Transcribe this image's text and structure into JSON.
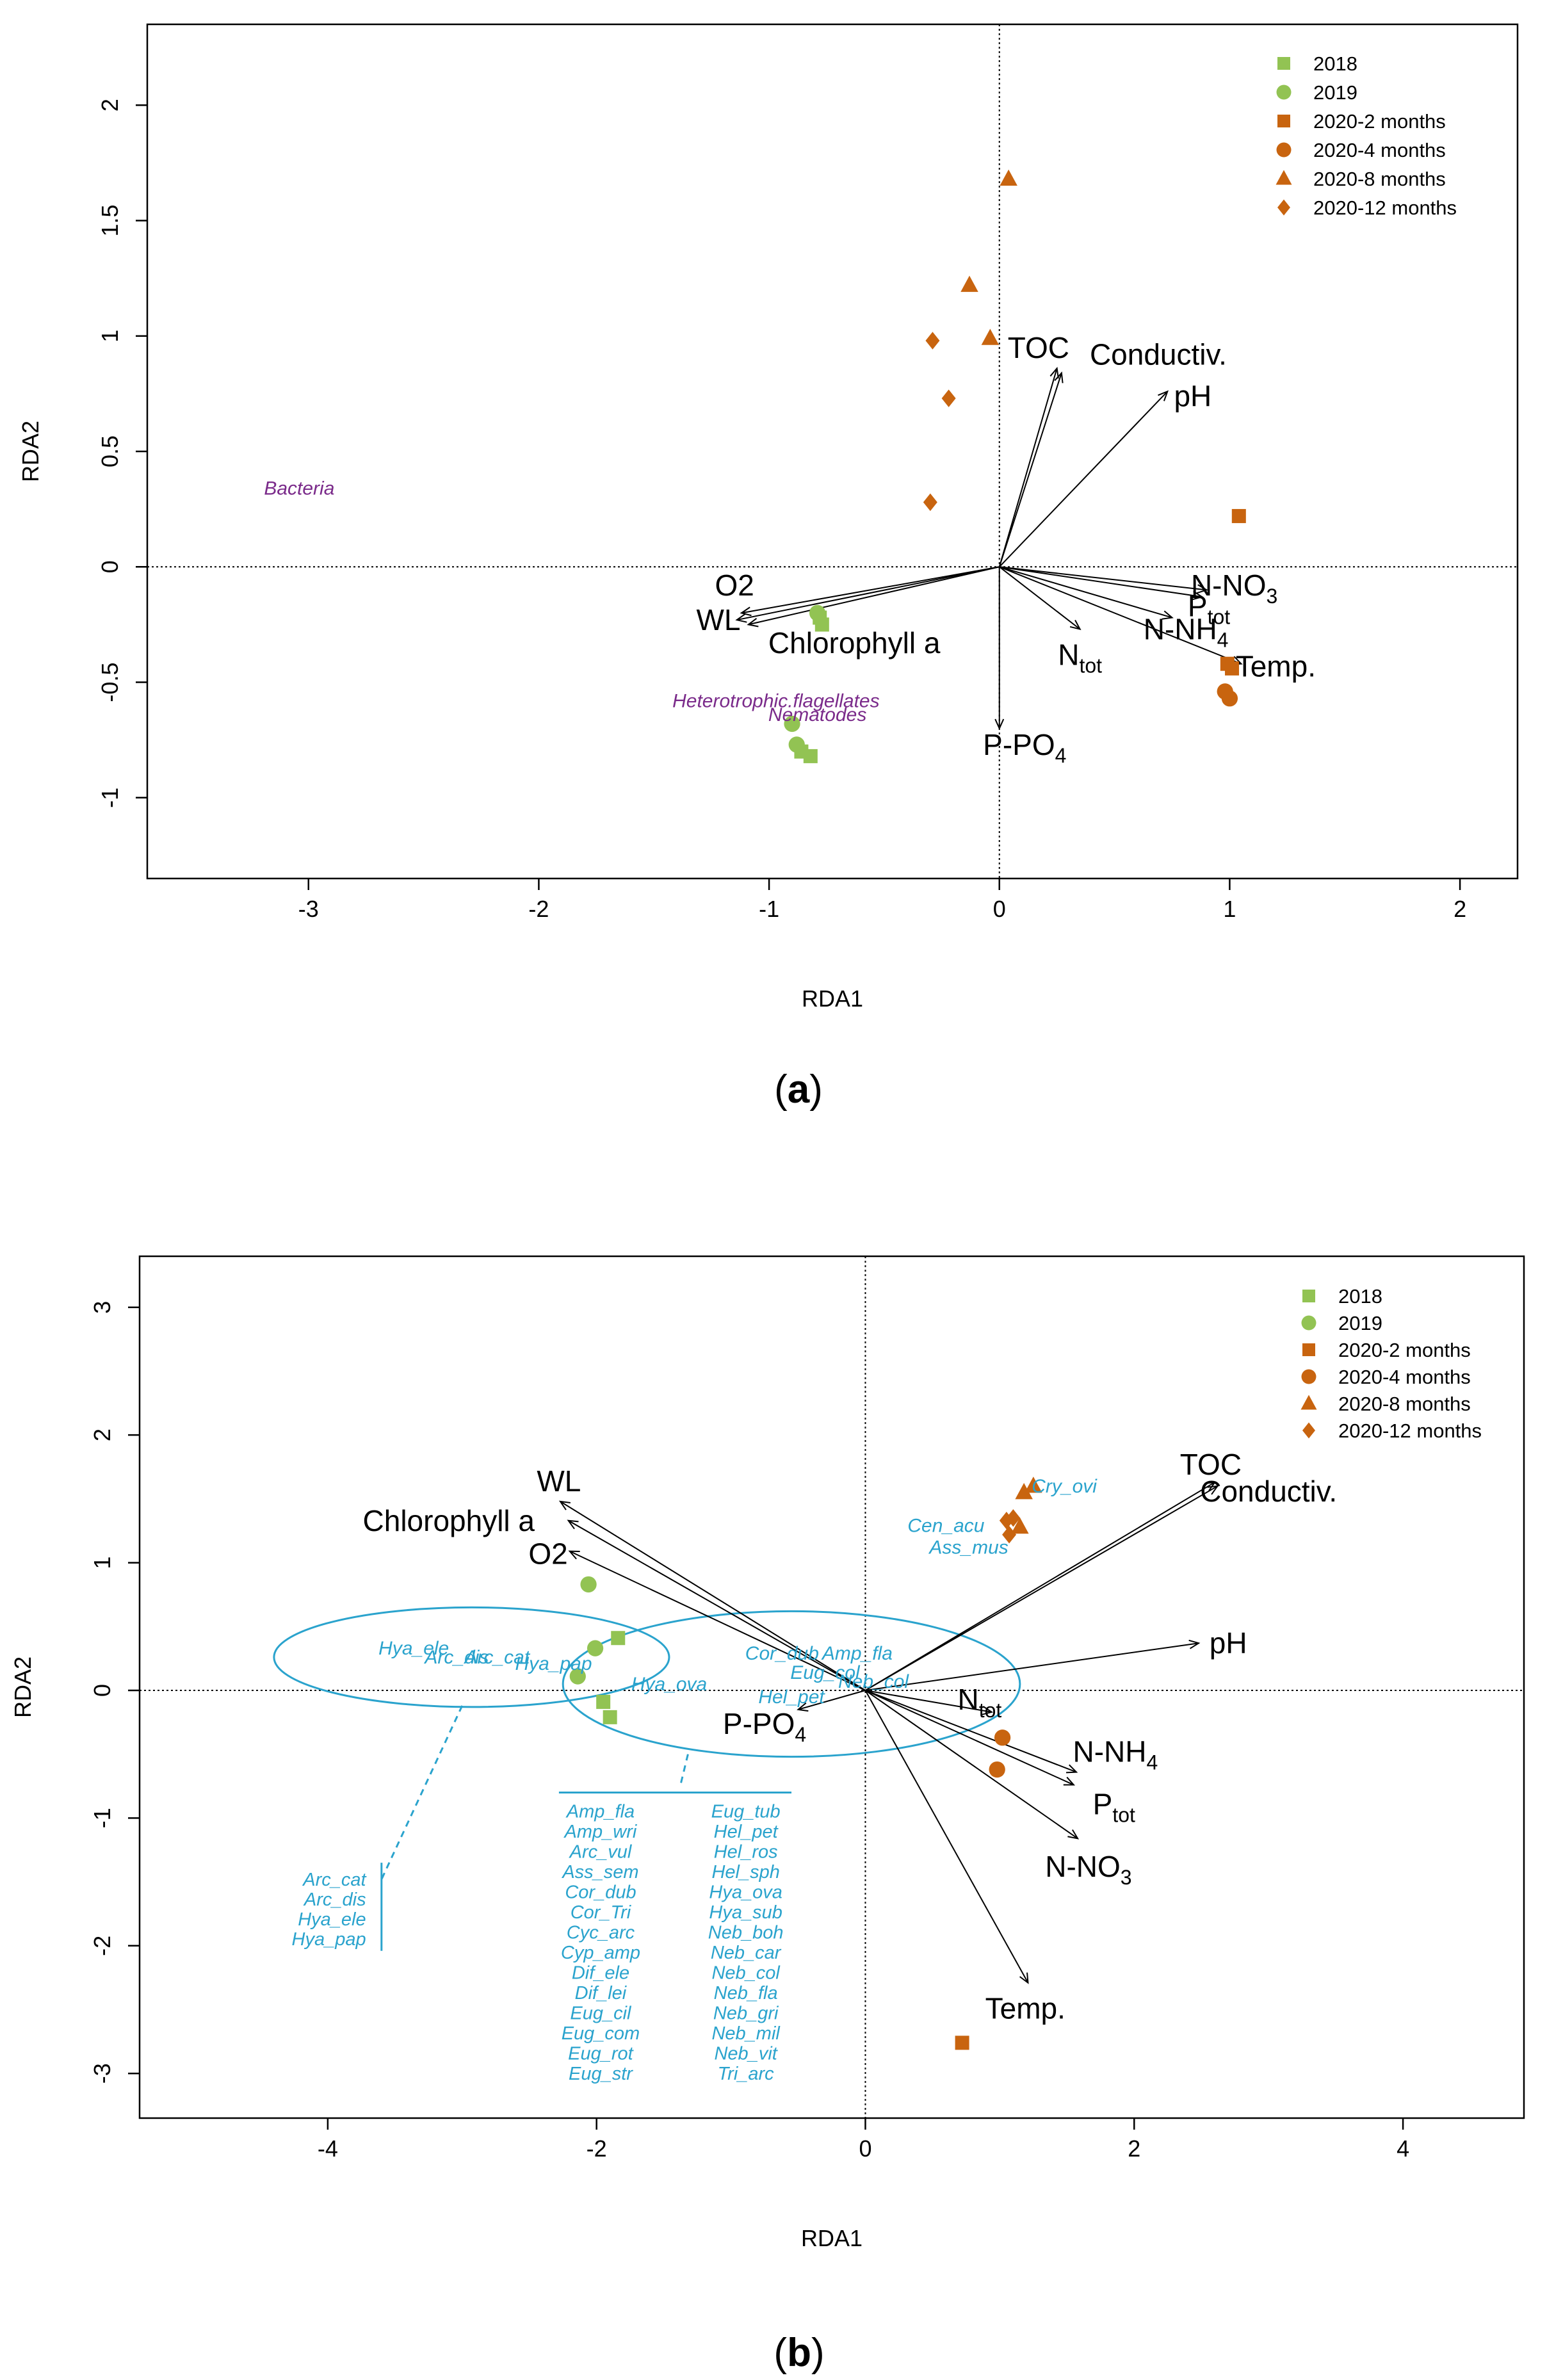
{
  "chart_data": [
    {
      "id": "a",
      "type": "scatter",
      "panel_label": "a",
      "xlabel": "RDA1",
      "ylabel": "RDA2",
      "xlim": [
        -3.7,
        2.25
      ],
      "ylim": [
        -1.35,
        2.35
      ],
      "xticks": [
        -3,
        -2,
        -1,
        0,
        1,
        2
      ],
      "yticks": [
        -1,
        -0.5,
        0,
        0.5,
        1,
        1.5,
        2
      ],
      "colors": {
        "green": "#92c353",
        "orange": "#c8640f",
        "purple": "#7a2a8a"
      },
      "legend": [
        {
          "label": "2018",
          "shape": "square",
          "color": "green"
        },
        {
          "label": "2019",
          "shape": "circle",
          "color": "green"
        },
        {
          "label": "2020-2 months",
          "shape": "square",
          "color": "orange"
        },
        {
          "label": "2020-4 months",
          "shape": "circle",
          "color": "orange"
        },
        {
          "label": "2020-8 months",
          "shape": "triangle",
          "color": "orange"
        },
        {
          "label": "2020-12 months",
          "shape": "diamond",
          "color": "orange"
        }
      ],
      "sites": [
        {
          "group": "2018",
          "x": -0.78,
          "y": -0.22
        },
        {
          "group": "2018",
          "x": -0.77,
          "y": -0.25
        },
        {
          "group": "2018",
          "x": -0.86,
          "y": -0.8
        },
        {
          "group": "2018",
          "x": -0.82,
          "y": -0.82
        },
        {
          "group": "2019",
          "x": -0.79,
          "y": -0.2
        },
        {
          "group": "2019",
          "x": -0.9,
          "y": -0.68
        },
        {
          "group": "2019",
          "x": -0.88,
          "y": -0.77
        },
        {
          "group": "2020-2 months",
          "x": 1.04,
          "y": 0.22
        },
        {
          "group": "2020-2 months",
          "x": 0.99,
          "y": -0.42
        },
        {
          "group": "2020-2 months",
          "x": 1.01,
          "y": -0.44
        },
        {
          "group": "2020-4 months",
          "x": 0.98,
          "y": -0.54
        },
        {
          "group": "2020-4 months",
          "x": 1.0,
          "y": -0.57
        },
        {
          "group": "2020-8 months",
          "x": 0.04,
          "y": 1.68
        },
        {
          "group": "2020-8 months",
          "x": -0.13,
          "y": 1.22
        },
        {
          "group": "2020-8 months",
          "x": -0.04,
          "y": 0.99
        },
        {
          "group": "2020-12 months",
          "x": -0.29,
          "y": 0.98
        },
        {
          "group": "2020-12 months",
          "x": -0.22,
          "y": 0.73
        },
        {
          "group": "2020-12 months",
          "x": -0.3,
          "y": 0.28
        }
      ],
      "species": [
        {
          "label": "Bacteria",
          "x": -3.04,
          "y": 0.34
        },
        {
          "label": "Heterotrophic.flagellates",
          "x": -0.97,
          "y": -0.58
        },
        {
          "label": "Nematodes",
          "x": -0.79,
          "y": -0.64
        }
      ],
      "arrows": [
        {
          "name": "TOC",
          "sub": "",
          "x": 0.25,
          "y": 0.86,
          "lx": 0.17,
          "ly": 0.95
        },
        {
          "name": "Conductiv.",
          "sub": "",
          "x": 0.27,
          "y": 0.84,
          "lx": 0.69,
          "ly": 0.92
        },
        {
          "name": "pH",
          "sub": "",
          "x": 0.73,
          "y": 0.76,
          "lx": 0.84,
          "ly": 0.74
        },
        {
          "name": "O2",
          "sub": "",
          "x": -1.12,
          "y": -0.2,
          "lx": -1.15,
          "ly": -0.08
        },
        {
          "name": "WL",
          "sub": "",
          "x": -1.14,
          "y": -0.23,
          "lx": -1.22,
          "ly": -0.23
        },
        {
          "name": "Chlorophyll a",
          "sub": "",
          "x": -1.09,
          "y": -0.25,
          "lx": -0.63,
          "ly": -0.33
        },
        {
          "name": "N-NO",
          "sub": "3",
          "x": 0.9,
          "y": -0.1,
          "lx": 1.02,
          "ly": -0.08
        },
        {
          "name": "P",
          "sub": "tot",
          "x": 0.88,
          "y": -0.13,
          "lx": 0.91,
          "ly": -0.17
        },
        {
          "name": "N-NH",
          "sub": "4",
          "x": 0.75,
          "y": -0.22,
          "lx": 0.81,
          "ly": -0.27
        },
        {
          "name": "N",
          "sub": "tot",
          "x": 0.35,
          "y": -0.27,
          "lx": 0.35,
          "ly": -0.38
        },
        {
          "name": "Temp.",
          "sub": "",
          "x": 1.05,
          "y": -0.42,
          "lx": 1.2,
          "ly": -0.43
        },
        {
          "name": "P-PO",
          "sub": "4",
          "x": 0.0,
          "y": -0.7,
          "lx": 0.11,
          "ly": -0.77
        }
      ]
    },
    {
      "id": "b",
      "type": "scatter",
      "panel_label": "b",
      "xlabel": "RDA1",
      "ylabel": "RDA2",
      "xlim": [
        -5.4,
        4.9
      ],
      "ylim": [
        -3.35,
        3.4
      ],
      "xticks": [
        -4,
        -2,
        0,
        2,
        4
      ],
      "yticks": [
        -3,
        -2,
        -1,
        0,
        1,
        2,
        3
      ],
      "colors": {
        "green": "#92c353",
        "orange": "#c8640f",
        "blue": "#2aa3cd"
      },
      "legend": [
        {
          "label": "2018",
          "shape": "square",
          "color": "green"
        },
        {
          "label": "2019",
          "shape": "circle",
          "color": "green"
        },
        {
          "label": "2020-2 months",
          "shape": "square",
          "color": "orange"
        },
        {
          "label": "2020-4 months",
          "shape": "circle",
          "color": "orange"
        },
        {
          "label": "2020-8 months",
          "shape": "triangle",
          "color": "orange"
        },
        {
          "label": "2020-12 months",
          "shape": "diamond",
          "color": "orange"
        }
      ],
      "sites": [
        {
          "group": "2018",
          "x": -1.84,
          "y": 0.41
        },
        {
          "group": "2018",
          "x": -1.95,
          "y": -0.09
        },
        {
          "group": "2018",
          "x": -1.9,
          "y": -0.21
        },
        {
          "group": "2019",
          "x": -2.06,
          "y": 0.83
        },
        {
          "group": "2019",
          "x": -2.01,
          "y": 0.33
        },
        {
          "group": "2019",
          "x": -2.14,
          "y": 0.11
        },
        {
          "group": "2020-2 months",
          "x": 0.72,
          "y": -2.76
        },
        {
          "group": "2020-4 months",
          "x": 1.02,
          "y": -0.37
        },
        {
          "group": "2020-4 months",
          "x": 0.98,
          "y": -0.62
        },
        {
          "group": "2020-8 months",
          "x": 1.18,
          "y": 1.55
        },
        {
          "group": "2020-8 months",
          "x": 1.25,
          "y": 1.6
        },
        {
          "group": "2020-8 months",
          "x": 1.15,
          "y": 1.28
        },
        {
          "group": "2020-12 months",
          "x": 1.05,
          "y": 1.33
        },
        {
          "group": "2020-12 months",
          "x": 1.1,
          "y": 1.35
        },
        {
          "group": "2020-12 months",
          "x": 1.07,
          "y": 1.22
        }
      ],
      "species": [
        {
          "label": "Cry_ovi",
          "x": 1.48,
          "y": 1.6
        },
        {
          "label": "Cen_acu",
          "x": 0.6,
          "y": 1.29
        },
        {
          "label": "Ass_mus",
          "x": 0.77,
          "y": 1.12
        },
        {
          "label": "Hya_ele",
          "x": -3.36,
          "y": 0.33
        },
        {
          "label": "Arc_dis",
          "x": -3.04,
          "y": 0.26
        },
        {
          "label": "Arc_cat",
          "x": -2.74,
          "y": 0.26
        },
        {
          "label": "Hya_pap",
          "x": -2.32,
          "y": 0.21
        },
        {
          "label": "Cor_dub",
          "x": -0.62,
          "y": 0.29
        },
        {
          "label": "Amp_fla",
          "x": -0.06,
          "y": 0.29
        },
        {
          "label": "Eug_col",
          "x": -0.3,
          "y": 0.14
        },
        {
          "label": "Hya_ova",
          "x": -1.46,
          "y": 0.05
        },
        {
          "label": "Neb_col",
          "x": 0.06,
          "y": 0.07
        },
        {
          "label": "Hel_pet",
          "x": -0.55,
          "y": -0.05
        }
      ],
      "ellipses": [
        {
          "cx": -2.93,
          "cy": 0.26,
          "rx": 1.47,
          "ry": 0.39
        },
        {
          "cx": -0.55,
          "cy": 0.05,
          "rx": 1.7,
          "ry": 0.57
        }
      ],
      "arrows": [
        {
          "name": "TOC",
          "sub": "",
          "x": 2.6,
          "y": 1.63,
          "lx": 2.57,
          "ly": 1.77
        },
        {
          "name": "Conductiv.",
          "sub": "",
          "x": 2.62,
          "y": 1.6,
          "lx": 3.0,
          "ly": 1.56
        },
        {
          "name": "pH",
          "sub": "",
          "x": 2.48,
          "y": 0.37,
          "lx": 2.7,
          "ly": 0.37
        },
        {
          "name": "WL",
          "sub": "",
          "x": -2.27,
          "y": 1.48,
          "lx": -2.28,
          "ly": 1.64
        },
        {
          "name": "Chlorophyll a",
          "sub": "",
          "x": -2.21,
          "y": 1.33,
          "lx": -3.1,
          "ly": 1.33
        },
        {
          "name": "O2",
          "sub": "",
          "x": -2.2,
          "y": 1.09,
          "lx": -2.36,
          "ly": 1.07
        },
        {
          "name": "N",
          "sub": "tot",
          "x": 0.94,
          "y": -0.17,
          "lx": 0.85,
          "ly": -0.07
        },
        {
          "name": "N-NH",
          "sub": "4",
          "x": 1.57,
          "y": -0.64,
          "lx": 1.86,
          "ly": -0.48
        },
        {
          "name": "P",
          "sub": "tot",
          "x": 1.55,
          "y": -0.74,
          "lx": 1.85,
          "ly": -0.89
        },
        {
          "name": "N-NO",
          "sub": "3",
          "x": 1.58,
          "y": -1.16,
          "lx": 1.66,
          "ly": -1.38
        },
        {
          "name": "Temp.",
          "sub": "",
          "x": 1.21,
          "y": -2.29,
          "lx": 1.19,
          "ly": -2.49
        },
        {
          "name": "P-PO",
          "sub": "4",
          "x": -0.5,
          "y": -0.15,
          "lx": -0.75,
          "ly": -0.26
        }
      ],
      "species_list_left_ellipse": [
        "Arc_cat",
        "Arc_dis",
        "Hya_ele",
        "Hya_pap"
      ],
      "species_list_right_ellipse": [
        [
          "Amp_fla",
          "Eug_tub"
        ],
        [
          "Amp_wri",
          "Hel_pet"
        ],
        [
          "Arc_vul",
          "Hel_ros"
        ],
        [
          "Ass_sem",
          "Hel_sph"
        ],
        [
          "Cor_dub",
          "Hya_ova"
        ],
        [
          "Cor_Tri",
          "Hya_sub"
        ],
        [
          "Cyc_arc",
          "Neb_boh"
        ],
        [
          "Cyp_amp",
          "Neb_car"
        ],
        [
          "Dif_ele",
          "Neb_col"
        ],
        [
          "Dif_lei",
          "Neb_fla"
        ],
        [
          "Eug_cil",
          "Neb_gri"
        ],
        [
          "Eug_com",
          "Neb_mil"
        ],
        [
          "Eug_rot",
          "Neb_vit"
        ],
        [
          "Eug_str",
          "Tri_arc"
        ]
      ]
    }
  ]
}
